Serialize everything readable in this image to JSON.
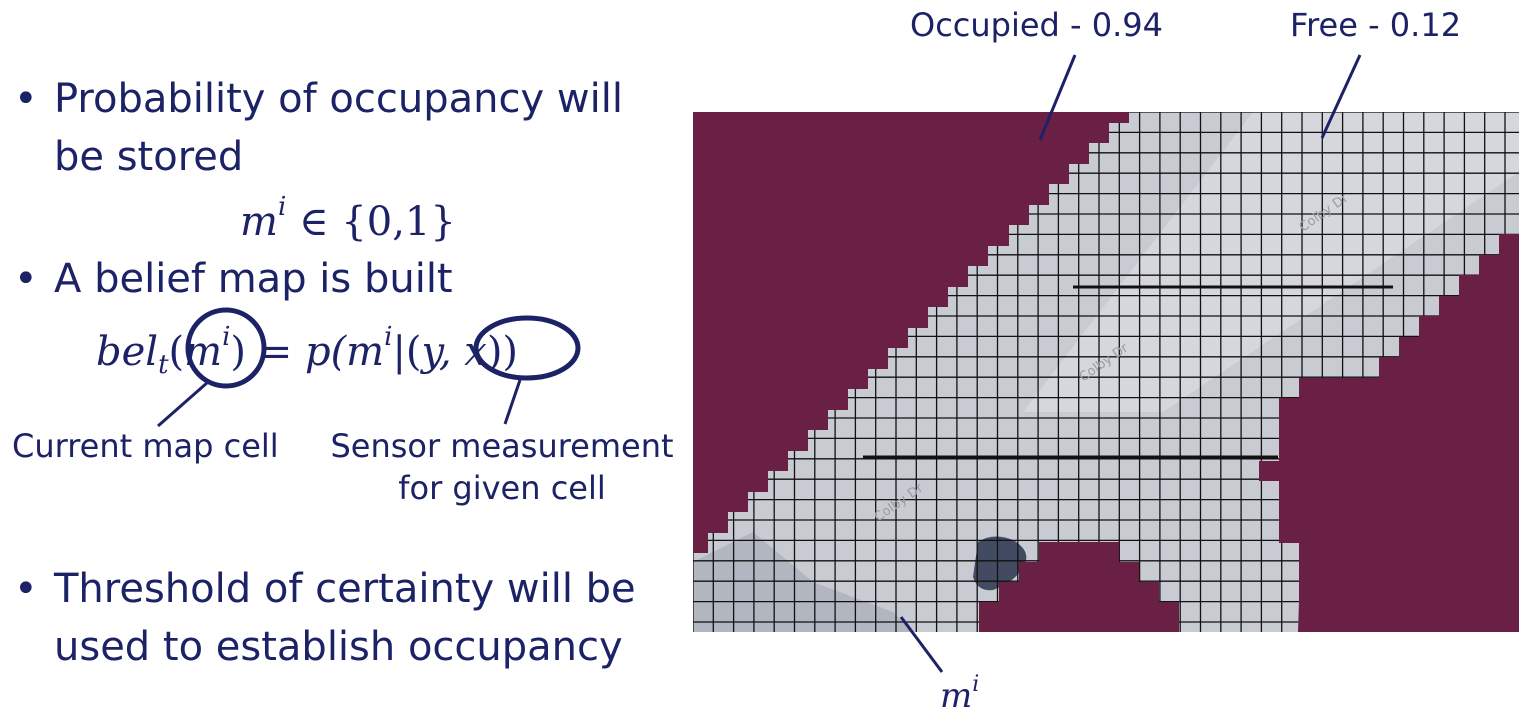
{
  "bullets": [
    {
      "line1": "Probability of occupancy will",
      "line2": "be stored"
    },
    {
      "line1": "A belief map is built"
    },
    {
      "line1": "Threshold of certainty will be",
      "line2": "used to establish occupancy"
    }
  ],
  "math": {
    "m": "m",
    "i": "i",
    "set_text": " ∈ {0,1}",
    "bel": "bel",
    "t": "t",
    "equals_p": " = p(",
    "bar": "|",
    "yx": "y, x",
    "close": ")"
  },
  "callouts": {
    "current_cell": "Current map cell",
    "sensor_line1": "Sensor measurement",
    "sensor_line2": "for given cell"
  },
  "map_labels": {
    "occupied": "Occupied - 0.94",
    "free": "Free - 0.12",
    "cell_symbol": "m",
    "cell_sup": "i"
  },
  "watermark": "Colby Dr",
  "colors": {
    "text": "#1c2266",
    "occupied": "#6a1f45",
    "free_cell": "#c9cbd2",
    "grid_line": "#111111"
  }
}
